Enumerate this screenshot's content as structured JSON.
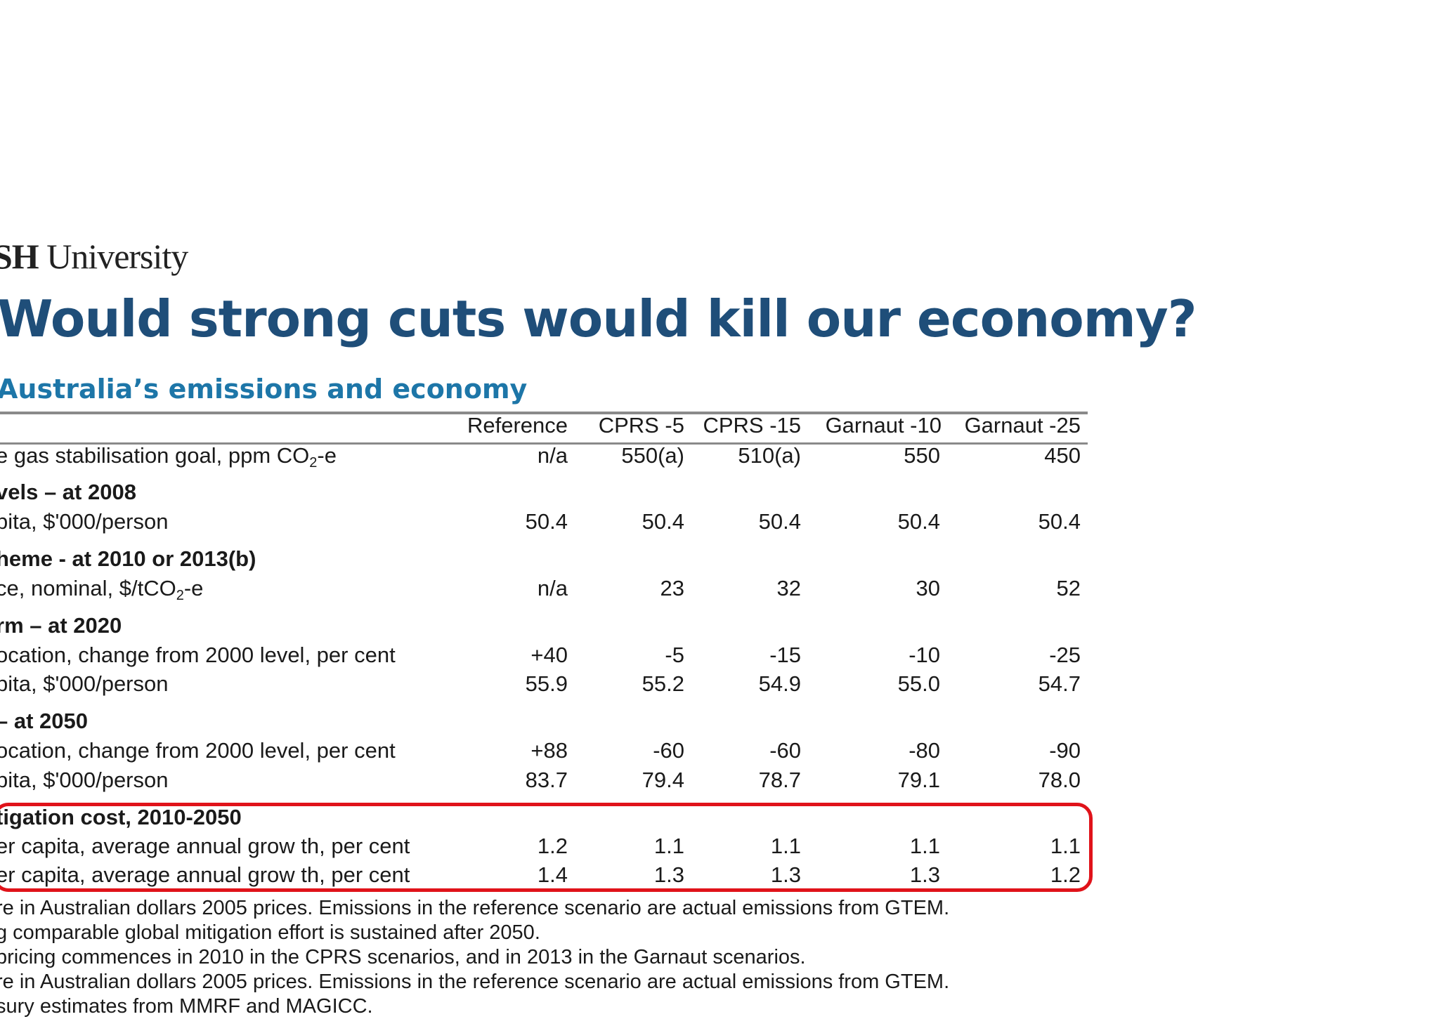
{
  "brand": {
    "bold": "SH",
    "rest": " University"
  },
  "title": "Would strong cuts would kill our economy?",
  "subtitle": "Australia’s emissions and economy",
  "table": {
    "headers": [
      "Reference",
      "CPRS -5",
      "CPRS -15",
      "Garnaut -10",
      "Garnaut -25"
    ],
    "rows": [
      {
        "label": "e gas stabilisation goal, ppm CO2-e",
        "section": false,
        "values": [
          "n/a",
          "550(a)",
          "510(a)",
          "550",
          "450"
        ]
      },
      {
        "label": "vels – at 2008",
        "section": true,
        "values": []
      },
      {
        "label": "pita, $'000/person",
        "section": false,
        "values": [
          "50.4",
          "50.4",
          "50.4",
          "50.4",
          "50.4"
        ]
      },
      {
        "label": "heme - at 2010 or 2013(b)",
        "section": true,
        "values": []
      },
      {
        "label": "ce, nominal, $/tCO2-e",
        "section": false,
        "values": [
          "n/a",
          "23",
          "32",
          "30",
          "52"
        ]
      },
      {
        "label": "rm – at 2020",
        "section": true,
        "values": []
      },
      {
        "label": "ocation, change from 2000 level, per cent",
        "section": false,
        "values": [
          "+40",
          "-5",
          "-15",
          "-10",
          "-25"
        ]
      },
      {
        "label": "pita, $'000/person",
        "section": false,
        "values": [
          "55.9",
          "55.2",
          "54.9",
          "55.0",
          "54.7"
        ]
      },
      {
        "label": "– at 2050",
        "section": true,
        "values": []
      },
      {
        "label": "ocation, change from 2000 level, per cent",
        "section": false,
        "values": [
          "+88",
          "-60",
          "-60",
          "-80",
          "-90"
        ]
      },
      {
        "label": "pita, $'000/person",
        "section": false,
        "values": [
          "83.7",
          "79.4",
          "78.7",
          "79.1",
          "78.0"
        ]
      },
      {
        "label": "tigation cost, 2010-2050",
        "section": true,
        "values": []
      },
      {
        "label": "er capita, average annual grow th, per cent",
        "section": false,
        "values": [
          "1.2",
          "1.1",
          "1.1",
          "1.1",
          "1.1"
        ]
      },
      {
        "label": "er capita, average annual grow th, per cent",
        "section": false,
        "values": [
          "1.4",
          "1.3",
          "1.3",
          "1.3",
          "1.2"
        ]
      }
    ]
  },
  "notes": [
    "re in Australian dollars 2005 prices. Emissions in the reference scenario are actual emissions from GTEM.",
    "g comparable global mitigation effort is sustained after 2050.",
    "pricing commences in 2010 in the CPRS scenarios, and in 2013 in the Garnaut scenarios.",
    "re in Australian dollars 2005 prices. Emissions in the reference scenario are actual emissions from GTEM.",
    "sury estimates from MMRF and MAGICC."
  ],
  "colors": {
    "title": "#1f4e79",
    "subtitle": "#1d76a8",
    "highlight": "#e0131a"
  }
}
